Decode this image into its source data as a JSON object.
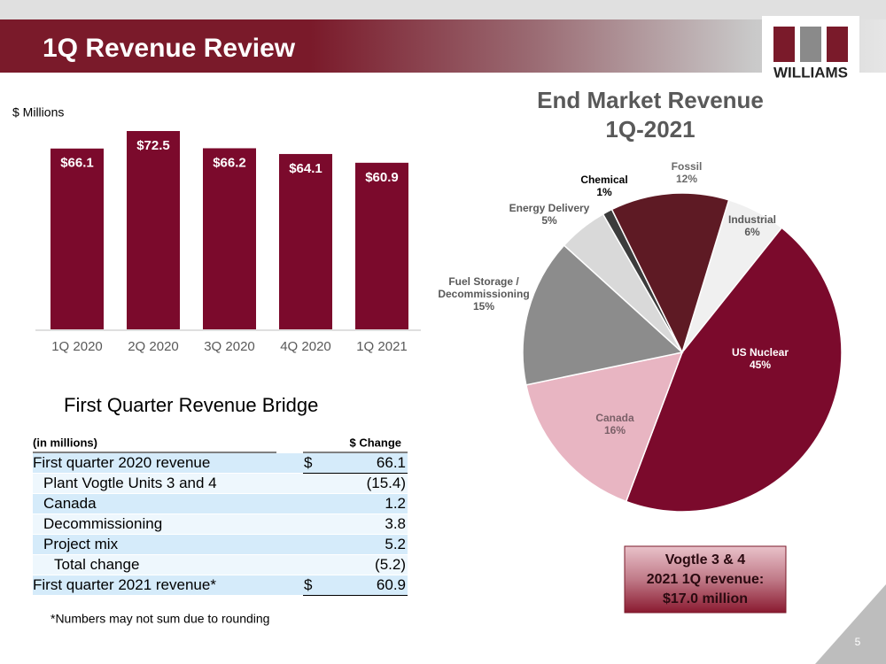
{
  "header": {
    "title": "1Q Revenue Review",
    "logo": "WILLIAMS",
    "page_number": "5"
  },
  "chart_data": [
    {
      "type": "bar",
      "unit_label": "$ Millions",
      "categories": [
        "1Q 2020",
        "2Q 2020",
        "3Q 2020",
        "4Q 2020",
        "1Q 2021"
      ],
      "values": [
        66.1,
        72.5,
        66.2,
        64.1,
        60.9
      ],
      "value_labels": [
        "$66.1",
        "$72.5",
        "$66.2",
        "$64.1",
        "$60.9"
      ],
      "color": "#7b0a2c"
    },
    {
      "type": "pie",
      "title": [
        "End Market Revenue",
        "1Q-2021"
      ],
      "categories": [
        "Industrial",
        "US Nuclear",
        "Canada",
        "Fuel Storage / Decommissioning",
        "Energy Delivery",
        "Chemical",
        "Fossil"
      ],
      "values": [
        6,
        45,
        16,
        15,
        5,
        1,
        12
      ],
      "value_labels": [
        "6%",
        "45%",
        "16%",
        "15%",
        "5%",
        "1%",
        "12%"
      ],
      "colors": [
        "#f0f0f0",
        "#7b0a2c",
        "#e8b5c2",
        "#8c8c8c",
        "#d9d9d9",
        "#3c3c3c",
        "#5e1a24"
      ]
    }
  ],
  "table": {
    "title": "First Quarter Revenue Bridge",
    "header": [
      "(in millions)",
      "$ Change"
    ],
    "rows": [
      {
        "label": "First quarter 2020 revenue",
        "currency": "$",
        "value": "66.1"
      },
      {
        "label": "Plant Vogtle Units 3 and 4",
        "value": "(15.4)"
      },
      {
        "label": "Canada",
        "value": "1.2"
      },
      {
        "label": "Decommissioning",
        "value": "3.8"
      },
      {
        "label": "Project mix",
        "value": "5.2"
      },
      {
        "label": "Total change",
        "value": "(5.2)"
      },
      {
        "label": "First quarter 2021 revenue*",
        "currency": "$",
        "value": "60.9"
      }
    ],
    "footnote": "*Numbers may not sum due to rounding"
  },
  "callout": [
    "Vogtle 3 & 4",
    "2021 1Q revenue:",
    "$17.0 million"
  ]
}
